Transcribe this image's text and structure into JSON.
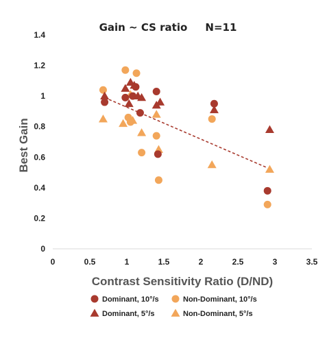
{
  "chart_data": {
    "type": "scatter",
    "title": "Gain ~ CS ratio     N=11",
    "xlabel": "Contrast Sensitivity Ratio (D/ND)",
    "ylabel": "Best Gain",
    "xlim": [
      0,
      3.5
    ],
    "ylim": [
      0,
      1.4
    ],
    "xticks": [
      "0",
      "0.5",
      "1",
      "1.5",
      "2",
      "2.5",
      "3",
      "3.5"
    ],
    "yticks": [
      "0",
      "0.2",
      "0.4",
      "0.6",
      "0.8",
      "1",
      "1.2",
      "1.4"
    ],
    "grid": false,
    "legend_position": "bottom",
    "series": [
      {
        "name": "Dominant, 10°/s",
        "marker": "circle",
        "color": "#a83a2e",
        "x": [
          0.7,
          0.98,
          1.08,
          1.12,
          1.18,
          1.4,
          1.42,
          2.18,
          2.9
        ],
        "y": [
          0.96,
          0.99,
          1.0,
          1.06,
          0.89,
          1.03,
          0.62,
          0.95,
          0.38
        ]
      },
      {
        "name": "Non-Dominant, 10°/s",
        "marker": "circle",
        "color": "#f2a65a",
        "x": [
          0.68,
          0.98,
          1.02,
          1.05,
          1.13,
          1.2,
          1.4,
          1.43,
          2.15,
          2.9
        ],
        "y": [
          1.04,
          1.17,
          0.86,
          0.83,
          1.15,
          0.63,
          0.74,
          0.45,
          0.85,
          0.29
        ]
      },
      {
        "name": "Dominant, 5°/s",
        "marker": "triangle",
        "color": "#a83a2e",
        "x": [
          0.7,
          0.98,
          1.03,
          1.05,
          1.1,
          1.15,
          1.2,
          1.4,
          1.45,
          2.18,
          2.93
        ],
        "y": [
          1.0,
          1.05,
          0.95,
          1.09,
          1.07,
          1.0,
          0.99,
          0.94,
          0.96,
          0.91,
          0.78
        ]
      },
      {
        "name": "Non-Dominant, 5°/s",
        "marker": "triangle",
        "color": "#f2a65a",
        "x": [
          0.68,
          0.95,
          1.05,
          1.08,
          1.2,
          1.4,
          1.43,
          2.15,
          2.93
        ],
        "y": [
          0.85,
          0.82,
          1.01,
          0.84,
          0.76,
          0.88,
          0.65,
          0.55,
          0.52
        ]
      }
    ],
    "trendline": {
      "style": "dashed",
      "color": "#a83a2e",
      "x": [
        0.7,
        2.9
      ],
      "y": [
        0.99,
        0.53
      ]
    }
  }
}
